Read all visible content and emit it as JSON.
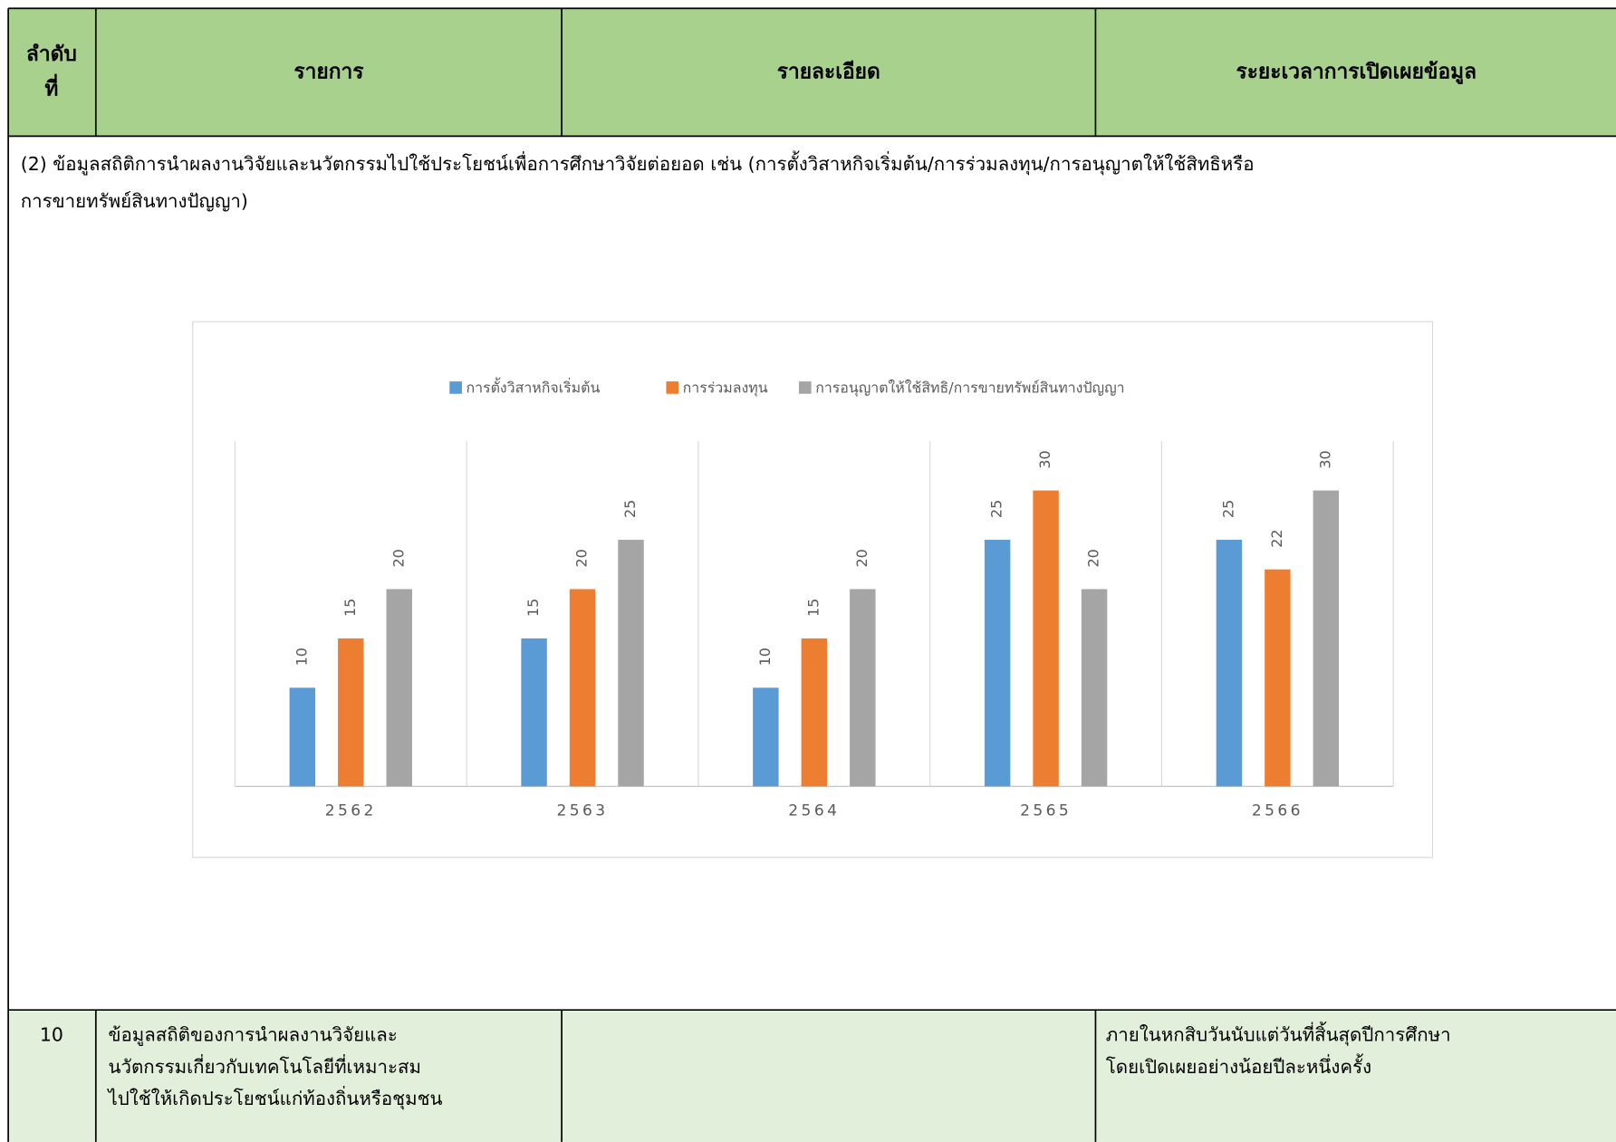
{
  "table": {
    "header": [
      [
        "ลำดับ",
        "ที่"
      ],
      [
        "รายการ"
      ],
      [
        "รายละเอียด"
      ],
      [
        "ระยะเวลาการเปิดเผยข้อมูล"
      ]
    ],
    "section": [
      "(2) ข้อมูลสถิติการนำผลงานวิจัยและนวัตกรรมไปใช้ประโยชน์เพื่อการศึกษาวิจัยต่อยอด เช่น (การตั้งวิสาหกิจเริ่มต้น/การร่วมลงทุน/การอนุญาตให้ใช้สิทธิหรือ",
      "การขายทรัพย์สินทางปัญญา)"
    ],
    "rows": [
      [
        [
          "10"
        ],
        [
          "ข้อมูลสถิติของการนำผลงานวิจัยและ",
          "นวัตกรรมเกี่ยวกับเทคโนโลยีที่เหมาะสม",
          "ไปใช้ให้เกิดประโยชน์แก่ท้องถิ่นหรือชุมชน"
        ],
        [],
        [
          "ภายในหกสิบวันนับแต่วันที่สิ้นสุดปีการศึกษา",
          "โดยเปิดเผยอย่างน้อยปีละหนึ่งครั้ง"
        ]
      ]
    ]
  },
  "chart_data": {
    "type": "bar",
    "categories": [
      "2562",
      "2563",
      "2564",
      "2565",
      "2566"
    ],
    "series": [
      {
        "name": "การตั้งวิสาหกิจเริ่มต้น",
        "color": "#5b9bd5",
        "values": [
          10,
          15,
          10,
          25,
          25
        ]
      },
      {
        "name": "การร่วมลงทุน",
        "color": "#ed7d31",
        "values": [
          15,
          20,
          15,
          30,
          22
        ]
      },
      {
        "name": "การอนุญาตให้ใช้สิทธิ/การขายทรัพย์สินทางปัญญา",
        "color": "#a5a5a5",
        "values": [
          20,
          25,
          20,
          20,
          30
        ]
      }
    ],
    "ylim": [
      0,
      35
    ],
    "legend": "top",
    "data_labels": true
  }
}
